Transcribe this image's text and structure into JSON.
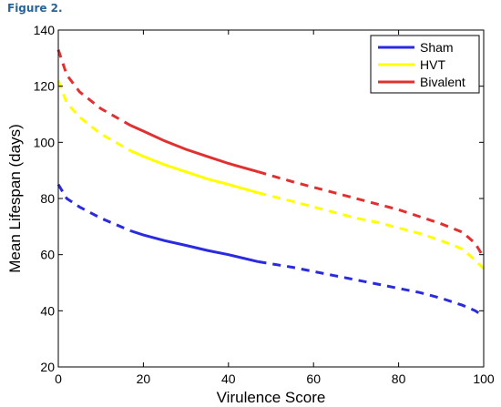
{
  "figure_label": "Figure 2.",
  "chart_data": {
    "type": "line",
    "title": "",
    "xlabel": "Virulence Score",
    "ylabel": "Mean Lifespan (days)",
    "xlim": [
      0,
      100
    ],
    "ylim": [
      20,
      140
    ],
    "xticks": [
      "0",
      "20",
      "40",
      "60",
      "80",
      "100"
    ],
    "yticks": [
      "20",
      "40",
      "60",
      "80",
      "100",
      "120",
      "140"
    ],
    "grid": false,
    "legend_position": "top-right",
    "solid_range": [
      17,
      47
    ],
    "series": [
      {
        "name": "Sham",
        "color": "#2a2ae0",
        "x": [
          0,
          2,
          5,
          10,
          17,
          20,
          25,
          30,
          35,
          40,
          47,
          55,
          60,
          65,
          70,
          75,
          80,
          85,
          90,
          95,
          98,
          100
        ],
        "y": [
          85,
          80,
          77,
          73,
          68.5,
          67,
          65,
          63.3,
          61.5,
          60,
          57.5,
          55.5,
          54,
          52.5,
          51,
          49.5,
          48,
          46.5,
          44.5,
          42,
          40,
          38
        ]
      },
      {
        "name": "HVT",
        "color": "#ffff00",
        "x": [
          0,
          2,
          5,
          10,
          17,
          20,
          25,
          30,
          35,
          40,
          47,
          55,
          60,
          65,
          70,
          75,
          80,
          85,
          90,
          95,
          98,
          100
        ],
        "y": [
          122,
          114,
          109,
          103,
          97,
          95,
          92,
          89.5,
          87,
          85,
          82,
          79,
          77,
          75,
          73,
          71.5,
          69.5,
          67.5,
          65,
          62,
          58,
          55
        ]
      },
      {
        "name": "Bivalent",
        "color": "#e03030",
        "x": [
          0,
          2,
          5,
          10,
          17,
          20,
          25,
          30,
          35,
          40,
          47,
          55,
          60,
          65,
          70,
          75,
          80,
          85,
          90,
          95,
          98,
          100
        ],
        "y": [
          133,
          124,
          118,
          112,
          106,
          104,
          100.5,
          97.5,
          95,
          92.5,
          89.5,
          86,
          84,
          82,
          80,
          78,
          76,
          73.5,
          71,
          68,
          64,
          59
        ]
      }
    ]
  }
}
